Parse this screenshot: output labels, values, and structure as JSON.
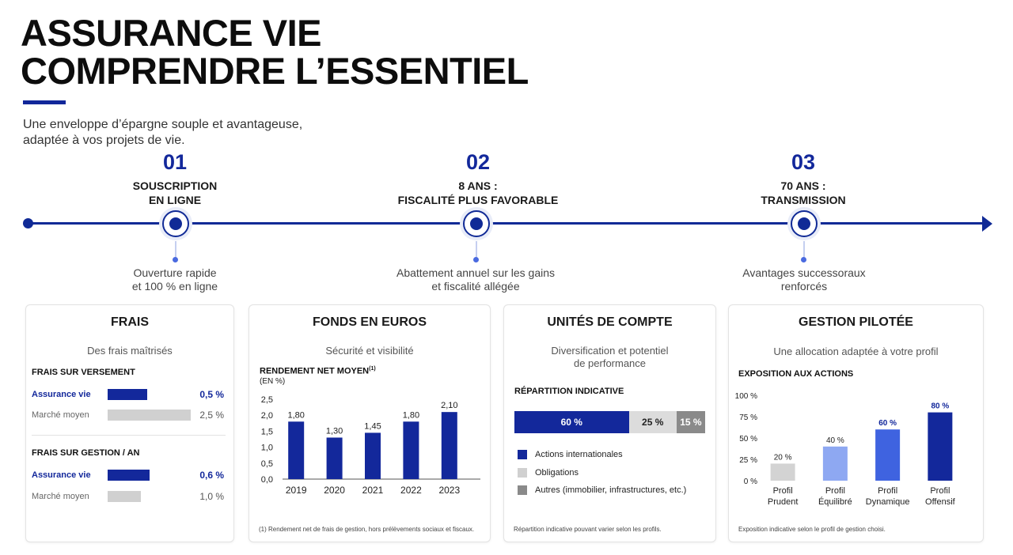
{
  "header": {
    "title_line1": "ASSURANCE VIE",
    "title_line2": "COMPRENDRE L’ESSENTIEL",
    "subtitle_line1": "Une enveloppe d’épargne souple et avantageuse,",
    "subtitle_line2": "adaptée à vos projets de vie."
  },
  "timeline": {
    "steps": [
      {
        "num": "01",
        "label": "SOUSCRIPTION\nEN LIGNE",
        "desc": "Ouverture rapide\net 100 % en ligne"
      },
      {
        "num": "02",
        "label": "8 ANS :\nFISCALITÉ PLUS FAVORABLE",
        "desc": "Abattement annuel sur les gains\net fiscalité allégée"
      },
      {
        "num": "03",
        "label": "70 ANS :\nTRANSMISSION",
        "desc": "Avantages successoraux\nrenforcés"
      }
    ]
  },
  "colors": {
    "navy": "#13289b",
    "grey_bar": "#d0d0d0",
    "dark_grey": "#8a8a8a"
  },
  "frais": {
    "title": "FRAIS",
    "subtitle": "Des frais maîtrisés",
    "versement": {
      "heading": "FRAIS SUR VERSEMENT",
      "rows": [
        {
          "label": "Assurance vie",
          "value": "0,5 %",
          "amount": 0.5
        },
        {
          "label": "Marché moyen",
          "value": "2,5 %",
          "amount": 2.5
        }
      ]
    },
    "gestion": {
      "heading": "FRAIS SUR GESTION / AN",
      "rows": [
        {
          "label": "Assurance vie",
          "value": "0,6 %",
          "amount": 0.6
        },
        {
          "label": "Marché moyen",
          "value": "1,0 %",
          "amount": 1.0
        }
      ]
    }
  },
  "fonds": {
    "title": "FONDS EN EUROS",
    "subtitle": "Sécurité et visibilité",
    "chart_heading": "RENDEMENT NET MOYEN",
    "chart_heading_sup": "(1)",
    "chart_unit": "(EN %)",
    "footnote": "(1) Rendement net de frais de gestion, hors prélèvements sociaux et fiscaux."
  },
  "uc": {
    "title": "UNITÉS DE COMPTE",
    "subtitle": "Diversification et potentiel\nde performance",
    "heading": "RÉPARTITION INDICATIVE",
    "segments": [
      {
        "label": "60 %",
        "value": 60,
        "color": "#13289b",
        "text_color": "#ffffff"
      },
      {
        "label": "25 %",
        "value": 25,
        "color": "#dcdcdc",
        "text_color": "#222222"
      },
      {
        "label": "15 %",
        "value": 15,
        "color": "#8a8a8a",
        "text_color": "#ffffff"
      }
    ],
    "legend": [
      {
        "label": "Actions internationales",
        "color": "#13289b"
      },
      {
        "label": "Obligations",
        "color": "#d0d0d0"
      },
      {
        "label": "Autres (immobilier, infrastructures, etc.)",
        "color": "#8a8a8a"
      }
    ],
    "footnote": "Répartition indicative pouvant varier selon les profils."
  },
  "gestion_pilotee": {
    "title": "GESTION PILOTÉE",
    "subtitle": "Une allocation adaptée à votre profil",
    "heading": "EXPOSITION AUX ACTIONS",
    "footnote": "Exposition indicative selon le profil de gestion choisi."
  },
  "chart_data": [
    {
      "type": "bar",
      "title": "RENDEMENT NET MOYEN",
      "ylabel": "(EN %)",
      "categories": [
        "2019",
        "2020",
        "2021",
        "2022",
        "2023"
      ],
      "values": [
        1.8,
        1.3,
        1.45,
        1.8,
        2.1
      ],
      "value_labels": [
        "1,80",
        "1,30",
        "1,45",
        "1,80",
        "2,10"
      ],
      "yticks": [
        "0,0",
        "0,5",
        "1,0",
        "1,5",
        "2,0",
        "2,5"
      ],
      "ylim": [
        0,
        2.5
      ],
      "color": "#13289b"
    },
    {
      "type": "bar",
      "title": "EXPOSITION AUX ACTIONS",
      "categories": [
        "Profil\nPrudent",
        "Profil\nÉquilibré",
        "Profil\nDynamique",
        "Profil\nOffensif"
      ],
      "values": [
        20,
        40,
        60,
        80
      ],
      "value_labels": [
        "20 %",
        "40 %",
        "60 %",
        "80 %"
      ],
      "colors": [
        "#d3d3d3",
        "#8ea8f2",
        "#3f63e0",
        "#13289b"
      ],
      "yticks": [
        "0 %",
        "25 %",
        "50 %",
        "75 %",
        "100 %"
      ],
      "ylim": [
        0,
        100
      ]
    }
  ]
}
